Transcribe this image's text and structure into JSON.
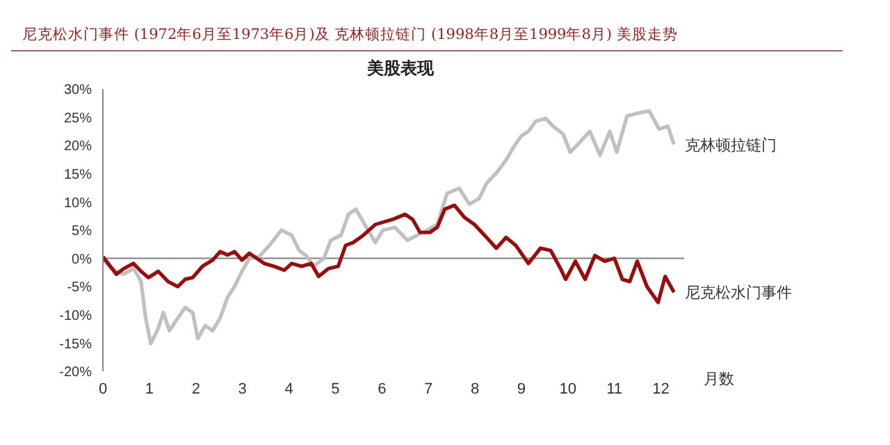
{
  "chart_data": {
    "type": "line",
    "title": "尼克松水门事件 (1972年6月至1973年6月)及 克林顿拉链门 (1998年8月至1999年8月) 美股走势",
    "subtitle": "美股表现",
    "xlabel": "月数",
    "xlim": [
      0,
      12.5
    ],
    "xticks": [
      0,
      1,
      2,
      3,
      4,
      5,
      6,
      7,
      8,
      9,
      10,
      11,
      12
    ],
    "ylim": [
      -20,
      30
    ],
    "yticks": [
      {
        "value": 30,
        "label": "30%"
      },
      {
        "value": 25,
        "label": "25%"
      },
      {
        "value": 20,
        "label": "20%"
      },
      {
        "value": 15,
        "label": "15%"
      },
      {
        "value": 10,
        "label": "10%"
      },
      {
        "value": 5,
        "label": "5%"
      },
      {
        "value": 0,
        "label": "0%"
      },
      {
        "value": -5,
        "label": "-5%"
      },
      {
        "value": -10,
        "label": "-10%"
      },
      {
        "value": -15,
        "label": "-15%"
      },
      {
        "value": -20,
        "label": "-20%"
      }
    ],
    "grid": false,
    "legend": false,
    "marker": "none",
    "line_style": "solid",
    "ref_lines": [
      {
        "axis": "y",
        "value": 0,
        "color": "#808080"
      }
    ],
    "series": [
      {
        "name": "克林顿拉链门",
        "color": "#c0c0c0",
        "x": [
          0,
          0.13,
          0.29,
          0.45,
          0.66,
          0.82,
          0.92,
          1.03,
          1.19,
          1.3,
          1.43,
          1.61,
          1.77,
          1.93,
          2.04,
          2.2,
          2.36,
          2.52,
          2.68,
          2.83,
          2.99,
          3.15,
          3.36,
          3.58,
          3.84,
          4.06,
          4.22,
          4.37,
          4.53,
          4.75,
          4.9,
          5.12,
          5.28,
          5.44,
          5.54,
          5.7,
          5.86,
          6.02,
          6.28,
          6.55,
          6.76,
          6.97,
          7.19,
          7.4,
          7.66,
          7.88,
          8.09,
          8.25,
          8.46,
          8.67,
          8.83,
          8.99,
          9.15,
          9.31,
          9.52,
          9.68,
          9.9,
          10.05,
          10.26,
          10.47,
          10.69,
          10.9,
          11.05,
          11.27,
          11.49,
          11.75,
          11.96,
          12.15,
          12.28
        ],
        "values": [
          0,
          -1.4,
          -2.3,
          -2.8,
          -1.8,
          -4.1,
          -10.6,
          -15.1,
          -12.4,
          -9.6,
          -12.8,
          -10.6,
          -8.7,
          -9.6,
          -14.2,
          -11.9,
          -12.8,
          -10.6,
          -6.9,
          -5,
          -2.3,
          0,
          0.3,
          2.3,
          5,
          4.1,
          1.4,
          0.5,
          -1.4,
          0,
          3.2,
          4.1,
          7.8,
          8.7,
          7.3,
          5,
          2.8,
          5,
          5.5,
          3.2,
          4.1,
          5,
          6,
          11.5,
          12.4,
          9.6,
          10.6,
          13.3,
          15.1,
          17.4,
          19.7,
          21.6,
          22.5,
          24.3,
          24.8,
          23.4,
          22,
          18.8,
          20.6,
          22.5,
          18.3,
          22.5,
          18.8,
          25.2,
          25.7,
          26.1,
          22.9,
          23.4,
          20.2
        ]
      },
      {
        "name": "尼克松水门事件",
        "color": "#9b0d0d",
        "x": [
          0,
          0.29,
          0.45,
          0.66,
          0.82,
          0.98,
          1.19,
          1.4,
          1.61,
          1.77,
          1.93,
          2.14,
          2.36,
          2.52,
          2.68,
          2.83,
          2.99,
          3.15,
          3.31,
          3.47,
          3.68,
          3.9,
          4.06,
          4.27,
          4.48,
          4.64,
          4.85,
          5.06,
          5.22,
          5.38,
          5.6,
          5.86,
          6.02,
          6.23,
          6.5,
          6.66,
          6.82,
          7.03,
          7.19,
          7.35,
          7.56,
          7.77,
          7.99,
          8.25,
          8.46,
          8.67,
          8.88,
          9.15,
          9.41,
          9.63,
          9.84,
          9.95,
          10.16,
          10.37,
          10.58,
          10.79,
          11,
          11.17,
          11.33,
          11.49,
          11.7,
          11.94,
          12.09,
          12.28
        ],
        "values": [
          0.3,
          -2.8,
          -1.8,
          -0.9,
          -2.3,
          -3.4,
          -2.3,
          -4.1,
          -5,
          -3.7,
          -3.4,
          -1.4,
          -0.3,
          1.2,
          0.6,
          1.2,
          -0.3,
          0.9,
          0,
          -0.9,
          -1.4,
          -2.1,
          -0.9,
          -1.4,
          -0.9,
          -3.2,
          -1.8,
          -1.4,
          2.3,
          2.8,
          4.1,
          6,
          6.4,
          6.9,
          7.8,
          6.9,
          4.6,
          4.6,
          5.5,
          8.7,
          9.4,
          7.3,
          6,
          3.7,
          1.8,
          3.7,
          2.3,
          -0.9,
          1.8,
          1.4,
          -1.8,
          -3.7,
          -0.5,
          -3.7,
          0.5,
          -0.5,
          0,
          -3.7,
          -4.1,
          -0.5,
          -5,
          -7.8,
          -3.2,
          -6
        ]
      }
    ]
  }
}
